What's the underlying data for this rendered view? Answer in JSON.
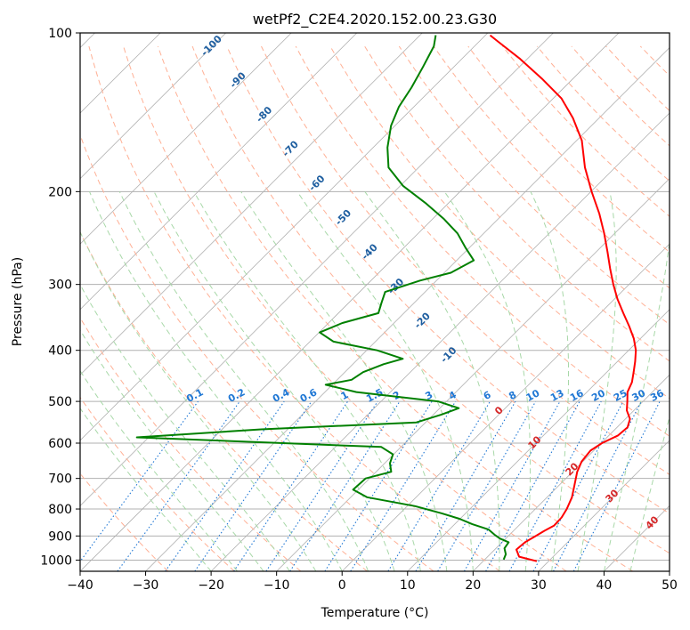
{
  "chart_data": {
    "type": "line",
    "title": "wetPf2_C2E4.2020.152.00.23.G30",
    "xlabel": "Temperature (°C)",
    "ylabel": "Pressure (hPa)",
    "xlim": [
      -40,
      50
    ],
    "ylim": [
      1050,
      100
    ],
    "y_scale": "log",
    "skew": true,
    "grid": true,
    "x_ticks": [
      -40,
      -30,
      -20,
      -10,
      0,
      10,
      20,
      30,
      40,
      50
    ],
    "y_ticks": [
      1000,
      900,
      800,
      700,
      600,
      500,
      400,
      300,
      200,
      100
    ],
    "series": [
      {
        "key": "temperature",
        "color": "#ff0000",
        "points": [
          [
            28.2,
            1005
          ],
          [
            24.8,
            985
          ],
          [
            23.3,
            955
          ],
          [
            23.5,
            925
          ],
          [
            24.2,
            900
          ],
          [
            24.7,
            880
          ],
          [
            25.4,
            860
          ],
          [
            25.3,
            830
          ],
          [
            24.8,
            800
          ],
          [
            23.8,
            760
          ],
          [
            22.3,
            720
          ],
          [
            20.7,
            680
          ],
          [
            19.8,
            650
          ],
          [
            19.5,
            620
          ],
          [
            20.1,
            600
          ],
          [
            21.4,
            580
          ],
          [
            21.6,
            560
          ],
          [
            20.7,
            540
          ],
          [
            18.9,
            520
          ],
          [
            17.6,
            500
          ],
          [
            16.2,
            480
          ],
          [
            15.4,
            460
          ],
          [
            14.1,
            440
          ],
          [
            12.7,
            420
          ],
          [
            11.1,
            400
          ],
          [
            9.0,
            380
          ],
          [
            6.4,
            360
          ],
          [
            3.5,
            340
          ],
          [
            0.5,
            320
          ],
          [
            -2.4,
            300
          ],
          [
            -5.3,
            280
          ],
          [
            -8.3,
            260
          ],
          [
            -11.6,
            240
          ],
          [
            -15.4,
            220
          ],
          [
            -19.9,
            200
          ],
          [
            -24.6,
            180
          ],
          [
            -29.2,
            160
          ],
          [
            -34.0,
            145
          ],
          [
            -38.8,
            133
          ],
          [
            -44.8,
            122
          ],
          [
            -51.1,
            112
          ],
          [
            -57.0,
            104
          ],
          [
            -59.3,
            101
          ]
        ]
      },
      {
        "key": "dewpoint",
        "color": "#008000",
        "points": [
          [
            22.9,
            998
          ],
          [
            22.4,
            975
          ],
          [
            21.3,
            950
          ],
          [
            21.0,
            925
          ],
          [
            19.1,
            910
          ],
          [
            17.7,
            895
          ],
          [
            16.0,
            875
          ],
          [
            12.7,
            855
          ],
          [
            9.9,
            835
          ],
          [
            6.3,
            815
          ],
          [
            1.2,
            790
          ],
          [
            -7.5,
            760
          ],
          [
            -10.8,
            735
          ],
          [
            -10.6,
            700
          ],
          [
            -7.7,
            680
          ],
          [
            -9.2,
            655
          ],
          [
            -10.1,
            630
          ],
          [
            -13.0,
            610
          ],
          [
            -51.8,
            585
          ],
          [
            -34.0,
            565
          ],
          [
            -11.4,
            548
          ],
          [
            -8.8,
            530
          ],
          [
            -7.1,
            515
          ],
          [
            -11.3,
            500
          ],
          [
            -25.2,
            480
          ],
          [
            -31.0,
            465
          ],
          [
            -27.8,
            455
          ],
          [
            -27.2,
            440
          ],
          [
            -25.3,
            425
          ],
          [
            -23.2,
            415
          ],
          [
            -28.4,
            400
          ],
          [
            -36.4,
            385
          ],
          [
            -39.9,
            370
          ],
          [
            -37.9,
            355
          ],
          [
            -33.9,
            340
          ],
          [
            -35.0,
            325
          ],
          [
            -36.1,
            310
          ],
          [
            -32.5,
            295
          ],
          [
            -29.0,
            285
          ],
          [
            -27.4,
            270
          ],
          [
            -30.7,
            255
          ],
          [
            -34.0,
            240
          ],
          [
            -38.4,
            225
          ],
          [
            -43.6,
            210
          ],
          [
            -49.6,
            195
          ],
          [
            -54.6,
            180
          ],
          [
            -57.8,
            165
          ],
          [
            -60.6,
            150
          ],
          [
            -62.3,
            138
          ],
          [
            -63.3,
            127
          ],
          [
            -64.7,
            116
          ],
          [
            -66.2,
            106
          ],
          [
            -67.6,
            101
          ]
        ]
      }
    ],
    "mixing_ratio_labels": [
      "0.1",
      "0.2",
      "0.4",
      "0.6",
      "1",
      "1.5",
      "2",
      "3",
      "4",
      "6",
      "8",
      "10",
      "13",
      "16",
      "20",
      "25",
      "30",
      "36"
    ],
    "isentrope_labels": [
      "-100",
      "-90",
      "-80",
      "-70",
      "-60",
      "-50",
      "-40",
      "-30",
      "-20",
      "-10"
    ],
    "moist_adiabat_labels": [
      "0",
      "10",
      "20",
      "30",
      "40"
    ],
    "colors": {
      "temperature": "#ff0000",
      "dewpoint": "#008000",
      "isotherm": "#b0b0b0",
      "dry_adiabat": "#ffb095",
      "moist_adiabat": "#a8d8a8",
      "mixing_ratio": "#1f77d4",
      "isentrope_label": "#1f5fa0",
      "moist_label": "#d62728"
    }
  }
}
